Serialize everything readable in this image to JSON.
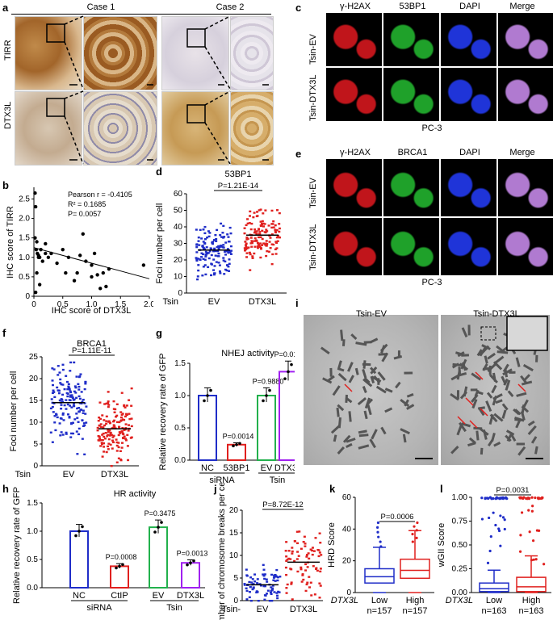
{
  "panels": {
    "a": {
      "label": "a",
      "case1": "Case 1",
      "case2": "Case 2",
      "row1": "TIRR",
      "row2": "DTX3L"
    },
    "b": {
      "label": "b",
      "pearson": "Pearson r = -0.4105",
      "r2": "R² = 0.1685",
      "p": "P= 0.0057",
      "xlabel": "IHC score of DTX3L",
      "ylabel": "IHC score of TIRR",
      "xticks": [
        "0",
        "0.5",
        "1.0",
        "1.5",
        "2.0"
      ],
      "yticks": [
        "0",
        "0.5",
        "1.0",
        "1.5",
        "2.0",
        "2.5"
      ]
    },
    "c": {
      "label": "c",
      "cols": [
        "γ-H2AX",
        "53BP1",
        "DAPI",
        "Merge"
      ],
      "rows": [
        "Tsin-EV",
        "Tsin-DTX3L"
      ],
      "cell": "PC-3"
    },
    "d": {
      "label": "d",
      "title": "53BP1",
      "p": "P=1.21E-14",
      "ylabel": "Foci number per cell",
      "xprefix": "Tsin",
      "groups": [
        "EV",
        "DTX3L"
      ],
      "yticks": [
        "0",
        "10",
        "20",
        "30",
        "40",
        "50",
        "60"
      ]
    },
    "e": {
      "label": "e",
      "cols": [
        "γ-H2AX",
        "BRCA1",
        "DAPI",
        "Merge"
      ],
      "rows": [
        "Tsin-EV",
        "Tsin-DTX3L"
      ],
      "cell": "PC-3"
    },
    "f": {
      "label": "f",
      "title": "BRCA1",
      "p": "P=1.11E-11",
      "ylabel": "Foci number per cell",
      "xprefix": "Tsin",
      "groups": [
        "EV",
        "DTX3L"
      ],
      "yticks": [
        "0",
        "5",
        "10",
        "15",
        "20",
        "25"
      ]
    },
    "g": {
      "label": "g",
      "title": "NHEJ activity",
      "ylabel": "Relative recovery rate of GFP",
      "groups": [
        "NC",
        "53BP1",
        "EV",
        "DTX3L"
      ],
      "group1": "siRNA",
      "group2": "Tsin",
      "p": [
        "P=0.0014",
        "P=0.9880",
        "P=0.0152"
      ],
      "yticks": [
        "0.0",
        "0.5",
        "1.0",
        "1.5"
      ]
    },
    "h": {
      "label": "h",
      "title": "HR activity",
      "ylabel": "Relative recovery rate of GFP",
      "groups": [
        "NC",
        "CtIP",
        "EV",
        "DTX3L"
      ],
      "group1": "siRNA",
      "group2": "Tsin",
      "p": [
        "P=0.0008",
        "P=0.3475",
        "P=0.0013"
      ],
      "yticks": [
        "0.0",
        "0.5",
        "1.0",
        "1.5"
      ]
    },
    "i": {
      "label": "i",
      "left": "Tsin-EV",
      "right": "Tsin-DTX3L"
    },
    "j": {
      "label": "j",
      "p": "P=8.72E-12",
      "ylabel": "Number of chromosome breaks per cell",
      "xprefix": "Tsin-",
      "groups": [
        "EV",
        "DTX3L"
      ],
      "yticks": [
        "0",
        "5",
        "10",
        "15",
        "20"
      ]
    },
    "k": {
      "label": "k",
      "p": "P=0.0006",
      "ylabel": "HRD Score",
      "gene": "DTX3L",
      "groups": [
        "Low",
        "High"
      ],
      "n": [
        "n=157",
        "n=157"
      ],
      "yticks": [
        "0",
        "20",
        "40",
        "60"
      ]
    },
    "l": {
      "label": "l",
      "p": "P=0.0031",
      "ylabel": "wGII Score",
      "gene": "DTX3L",
      "groups": [
        "Low",
        "High"
      ],
      "n": [
        "n=163",
        "n=163"
      ],
      "yticks": [
        "0.00",
        "0.25",
        "0.50",
        "0.75",
        "1.00"
      ]
    }
  },
  "colors": {
    "blue": "#1f2dc8",
    "red": "#e0201e",
    "green": "#22b14c",
    "purple": "#a020f0",
    "stain": "#b27a3a"
  },
  "chart_data": [
    {
      "type": "scatter",
      "panel": "b",
      "x": [
        0.02,
        0.03,
        0.05,
        0.04,
        0.06,
        0.08,
        0.1,
        0.12,
        0.15,
        0.2,
        0.25,
        0.3,
        0.5,
        0.55,
        0.7,
        0.75,
        0.8,
        0.9,
        1.0,
        1.05,
        1.1,
        1.15,
        1.2,
        1.25,
        1.3,
        1.9,
        0.02,
        0.05,
        0.1,
        0.2,
        0.6,
        0.85,
        1.0,
        0.03,
        0.4,
        0.08
      ],
      "y": [
        2.65,
        2.3,
        1.4,
        1.2,
        1.1,
        1.05,
        1.0,
        1.2,
        0.9,
        1.35,
        1.0,
        1.1,
        1.2,
        0.6,
        0.4,
        0.6,
        1.05,
        0.9,
        0.5,
        1.1,
        0.55,
        0.2,
        0.6,
        0.25,
        0.7,
        0.8,
        1.5,
        0.6,
        0.3,
        1.1,
        1.0,
        1.6,
        0.8,
        0.1,
        0.85,
        1.0
      ],
      "xlabel": "IHC score of DTX3L",
      "ylabel": "IHC score of TIRR",
      "xlim": [
        0,
        2
      ],
      "ylim": [
        0,
        2.8
      ]
    },
    {
      "type": "scatter",
      "panel": "d",
      "groups": [
        "EV",
        "DTX3L"
      ],
      "mean": [
        26,
        35
      ],
      "ylim": [
        0,
        60
      ]
    },
    {
      "type": "scatter",
      "panel": "f",
      "groups": [
        "EV",
        "DTX3L"
      ],
      "mean": [
        14.5,
        8.5
      ],
      "ylim": [
        0,
        25
      ]
    },
    {
      "type": "bar",
      "panel": "g",
      "categories": [
        "NC",
        "53BP1",
        "EV",
        "DTX3L"
      ],
      "values": [
        1.0,
        0.24,
        1.0,
        1.37
      ],
      "ylim": [
        0,
        1.6
      ]
    },
    {
      "type": "bar",
      "panel": "h",
      "categories": [
        "NC",
        "CtIP",
        "EV",
        "DTX3L"
      ],
      "values": [
        1.0,
        0.38,
        1.07,
        0.44
      ],
      "ylim": [
        0,
        1.5
      ]
    },
    {
      "type": "scatter",
      "panel": "j",
      "groups": [
        "EV",
        "DTX3L"
      ],
      "mean": [
        3.5,
        8.5
      ],
      "ylim": [
        0,
        20
      ]
    },
    {
      "type": "box",
      "panel": "k",
      "groups": [
        "Low",
        "High"
      ],
      "median": [
        10,
        14
      ],
      "q1": [
        6,
        9
      ],
      "q3": [
        15,
        21
      ],
      "ylim": [
        0,
        60
      ]
    },
    {
      "type": "box",
      "panel": "l",
      "groups": [
        "Low",
        "High"
      ],
      "median": [
        0.04,
        0.06
      ],
      "q1": [
        0.01,
        0.01
      ],
      "q3": [
        0.1,
        0.16
      ],
      "ylim": [
        0,
        1.05
      ]
    }
  ]
}
